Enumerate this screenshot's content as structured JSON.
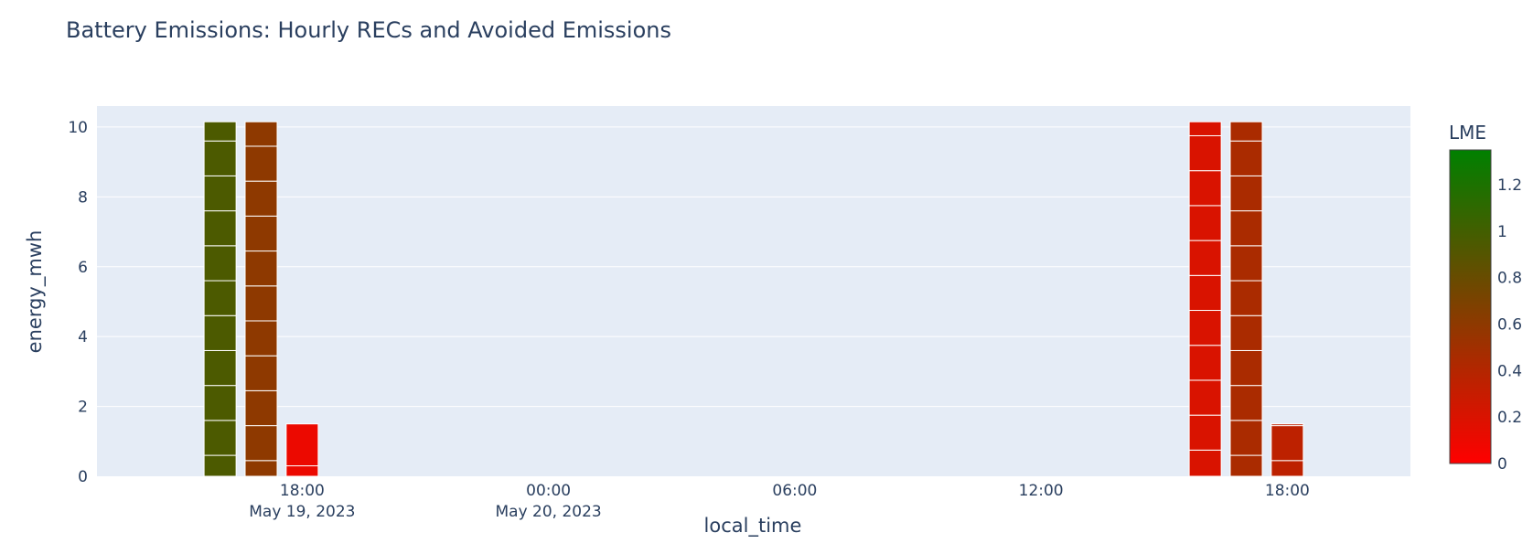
{
  "chart_data": {
    "type": "bar",
    "title": "Battery Emissions: Hourly RECs and Avoided Emissions",
    "xlabel": "local_time",
    "ylabel": "energy_mwh",
    "ylim": [
      0,
      10.6
    ],
    "xlim": [
      "2023-05-19 13:00",
      "2023-05-20 21:00"
    ],
    "grid": true,
    "y_ticks": [
      "0",
      "2",
      "4",
      "6",
      "8",
      "10"
    ],
    "x_ticks": [
      {
        "at": "2023-05-19 18:00",
        "line1": "18:00",
        "line2": "May 19, 2023"
      },
      {
        "at": "2023-05-20 00:00",
        "line1": "00:00",
        "line2": "May 20, 2023"
      },
      {
        "at": "2023-05-20 06:00",
        "line1": "06:00",
        "line2": ""
      },
      {
        "at": "2023-05-20 12:00",
        "line1": "12:00",
        "line2": ""
      },
      {
        "at": "2023-05-20 18:00",
        "line1": "18:00",
        "line2": ""
      }
    ],
    "bars": [
      {
        "x": "2023-05-19 16:00",
        "stack": [
          0.6,
          1.0,
          1.0,
          1.0,
          1.0,
          1.0,
          1.0,
          1.0,
          1.0,
          1.0,
          0.55
        ],
        "lme": 0.95
      },
      {
        "x": "2023-05-19 17:00",
        "stack": [
          0.45,
          1.0,
          1.0,
          1.0,
          1.0,
          1.0,
          1.0,
          1.0,
          1.0,
          1.0,
          0.7
        ],
        "lme": 0.6
      },
      {
        "x": "2023-05-19 18:00",
        "stack": [
          0.3,
          1.2
        ],
        "lme": 0.1
      },
      {
        "x": "2023-05-20 16:00",
        "stack": [
          0.75,
          1.0,
          1.0,
          1.0,
          1.0,
          1.0,
          1.0,
          1.0,
          1.0,
          1.0,
          0.4
        ],
        "lme": 0.2
      },
      {
        "x": "2023-05-20 17:00",
        "stack": [
          0.6,
          1.0,
          1.0,
          1.0,
          1.0,
          1.0,
          1.0,
          1.0,
          1.0,
          1.0,
          0.55
        ],
        "lme": 0.45
      },
      {
        "x": "2023-05-20 18:00",
        "stack": [
          0.45,
          1.0,
          0.05
        ],
        "lme": 0.35
      }
    ],
    "colorbar": {
      "title": "LME",
      "min": 0,
      "max": 1.35,
      "ticks": [
        "0",
        "0.2",
        "0.4",
        "0.6",
        "0.8",
        "1",
        "1.2"
      ],
      "colors": [
        "#ff0000",
        "#008000"
      ]
    }
  }
}
